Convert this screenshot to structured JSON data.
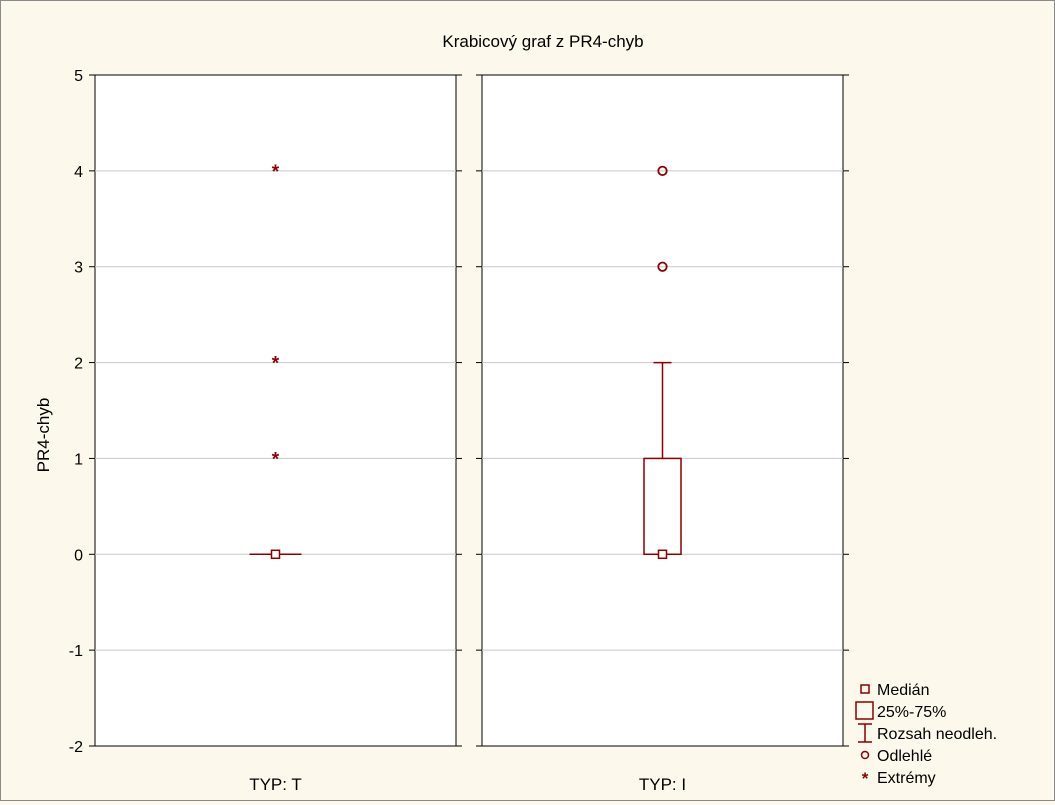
{
  "colors": {
    "background": "#fdf8ec",
    "plot_background": "#ffffff",
    "series": "#8b0000",
    "grid": "#c8c8c8"
  },
  "chart_data": {
    "type": "box",
    "title": "Krabicový graf z PR4-chyb",
    "ylabel": "PR4-chyb",
    "xlabel": "",
    "ylim": [
      -2,
      5
    ],
    "yticks": [
      5,
      4,
      3,
      2,
      1,
      0,
      -1,
      -2
    ],
    "grid": true,
    "legend_position": "bottom-right",
    "groups": [
      {
        "label": "TYP: T",
        "median": 0,
        "q1": 0,
        "q3": 0,
        "whisker_low": 0,
        "whisker_high": 0,
        "outliers": [],
        "extremes": [
          4,
          2,
          1
        ]
      },
      {
        "label": "TYP: I",
        "median": 0,
        "q1": 0,
        "q3": 1,
        "whisker_low": 0,
        "whisker_high": 2,
        "outliers": [
          4,
          3
        ],
        "extremes": []
      }
    ],
    "legend": [
      {
        "key": "median",
        "label": "Medián"
      },
      {
        "key": "box",
        "label": "25%-75%"
      },
      {
        "key": "whisker",
        "label": "Rozsah neodleh."
      },
      {
        "key": "outlier",
        "label": "Odlehlé"
      },
      {
        "key": "extreme",
        "label": "Extrémy"
      }
    ]
  }
}
